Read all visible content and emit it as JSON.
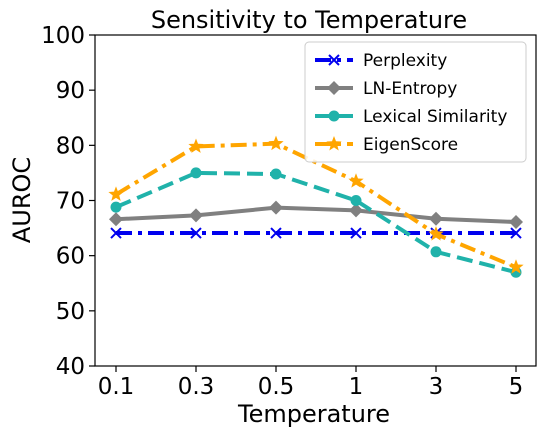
{
  "chart_data": {
    "type": "line",
    "title": "Sensitivity to Temperature",
    "xlabel": "Temperature",
    "ylabel": "AUROC",
    "categories": [
      "0.1",
      "0.3",
      "0.5",
      "1",
      "3",
      "5"
    ],
    "ylim": [
      40,
      100
    ],
    "yticks": [
      40,
      50,
      60,
      70,
      80,
      90,
      100
    ],
    "grid": false,
    "legend_position": "top-right",
    "series": [
      {
        "name": "Perplexity",
        "values": [
          64.1,
          64.1,
          64.1,
          64.1,
          64.1,
          64.1
        ],
        "color": "#0000ee",
        "marker": "x",
        "dash": "dashdot"
      },
      {
        "name": "LN-Entropy",
        "values": [
          66.6,
          67.3,
          68.7,
          68.2,
          66.7,
          66.1
        ],
        "color": "#808080",
        "marker": "diamond",
        "dash": "solid"
      },
      {
        "name": "Lexical Similarity",
        "values": [
          68.8,
          75.0,
          74.8,
          70.0,
          60.7,
          57.0
        ],
        "color": "#20b2aa",
        "marker": "circle",
        "dash": "dashed"
      },
      {
        "name": "EigenScore",
        "values": [
          71.1,
          79.8,
          80.3,
          73.5,
          63.9,
          57.9
        ],
        "color": "#ffa500",
        "marker": "star",
        "dash": "dashdot"
      }
    ]
  }
}
